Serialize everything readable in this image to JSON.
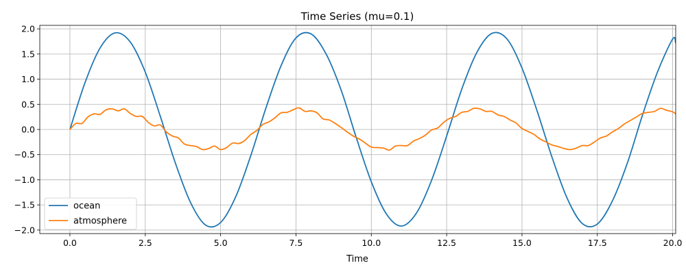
{
  "chart_data": {
    "type": "line",
    "title": "Time Series (mu=0.1)",
    "xlabel": "Time",
    "ylabel": "",
    "xlim": [
      -1.0,
      20.1
    ],
    "ylim": [
      -2.07,
      2.07
    ],
    "xticks": [
      0.0,
      2.5,
      5.0,
      7.5,
      10.0,
      12.5,
      15.0,
      17.5,
      20.0
    ],
    "xtick_labels": [
      "0.0",
      "2.5",
      "5.0",
      "7.5",
      "10.0",
      "12.5",
      "15.0",
      "17.5",
      "20.0"
    ],
    "yticks": [
      -2.0,
      -1.5,
      -1.0,
      -0.5,
      0.0,
      0.5,
      1.0,
      1.5,
      2.0
    ],
    "ytick_labels": [
      "−2.0",
      "−1.5",
      "−1.0",
      "−0.5",
      "0.0",
      "0.5",
      "1.0",
      "1.5",
      "2.0"
    ],
    "grid": true,
    "legend_position": "lower-left",
    "series": [
      {
        "name": "ocean",
        "color": "#1f77b4",
        "x": [
          0.0,
          0.5,
          1.0,
          1.5,
          2.0,
          2.5,
          3.0,
          3.5,
          4.0,
          4.5,
          5.0,
          5.5,
          6.0,
          6.5,
          7.0,
          7.5,
          8.0,
          8.5,
          9.0,
          9.5,
          10.0,
          10.5,
          11.0,
          11.5,
          12.0,
          12.5,
          13.0,
          13.5,
          14.0,
          14.5,
          15.0,
          15.5,
          16.0,
          16.5,
          17.0,
          17.5,
          18.0,
          18.5,
          19.0,
          19.5,
          20.0,
          20.1
        ],
        "y": [
          0.0,
          0.93,
          1.62,
          1.92,
          1.74,
          1.14,
          0.26,
          -0.67,
          -1.45,
          -1.9,
          -1.85,
          -1.34,
          -0.52,
          0.42,
          1.26,
          1.82,
          1.9,
          1.5,
          0.78,
          -0.16,
          -1.04,
          -1.68,
          -1.92,
          -1.66,
          -1.01,
          -0.13,
          0.8,
          1.53,
          1.91,
          1.8,
          1.22,
          0.37,
          -0.56,
          -1.37,
          -1.87,
          -1.88,
          -1.42,
          -0.66,
          0.29,
          1.15,
          1.8,
          1.72
        ]
      },
      {
        "name": "atmosphere",
        "color": "#ff7f0e",
        "x": [
          0.0,
          0.2,
          0.4,
          0.6,
          0.8,
          1.0,
          1.2,
          1.4,
          1.6,
          1.8,
          2.0,
          2.2,
          2.4,
          2.6,
          2.8,
          3.0,
          3.2,
          3.4,
          3.6,
          3.8,
          4.0,
          4.2,
          4.4,
          4.6,
          4.8,
          5.0,
          5.2,
          5.4,
          5.6,
          5.8,
          6.0,
          6.2,
          6.4,
          6.6,
          6.8,
          7.0,
          7.2,
          7.4,
          7.6,
          7.8,
          8.0,
          8.2,
          8.4,
          8.6,
          8.8,
          9.0,
          9.2,
          9.4,
          9.6,
          9.8,
          10.0,
          10.2,
          10.4,
          10.6,
          10.8,
          11.0,
          11.2,
          11.4,
          11.6,
          11.8,
          12.0,
          12.2,
          12.4,
          12.6,
          12.8,
          13.0,
          13.2,
          13.4,
          13.6,
          13.8,
          14.0,
          14.2,
          14.4,
          14.6,
          14.8,
          15.0,
          15.2,
          15.4,
          15.6,
          15.8,
          16.0,
          16.2,
          16.4,
          16.6,
          16.8,
          17.0,
          17.2,
          17.4,
          17.6,
          17.8,
          18.0,
          18.2,
          18.4,
          18.6,
          18.8,
          19.0,
          19.2,
          19.4,
          19.6,
          19.8,
          20.0,
          20.1
        ],
        "y": [
          0.0,
          0.12,
          0.12,
          0.25,
          0.31,
          0.3,
          0.39,
          0.41,
          0.37,
          0.41,
          0.32,
          0.26,
          0.26,
          0.14,
          0.07,
          0.09,
          -0.05,
          -0.13,
          -0.17,
          -0.29,
          -0.32,
          -0.34,
          -0.4,
          -0.38,
          -0.33,
          -0.4,
          -0.36,
          -0.27,
          -0.28,
          -0.22,
          -0.1,
          -0.02,
          0.1,
          0.15,
          0.23,
          0.33,
          0.34,
          0.39,
          0.43,
          0.36,
          0.37,
          0.33,
          0.21,
          0.19,
          0.12,
          0.04,
          -0.05,
          -0.13,
          -0.19,
          -0.27,
          -0.35,
          -0.36,
          -0.37,
          -0.41,
          -0.33,
          -0.32,
          -0.32,
          -0.23,
          -0.18,
          -0.11,
          -0.01,
          0.03,
          0.14,
          0.22,
          0.26,
          0.34,
          0.36,
          0.42,
          0.41,
          0.36,
          0.36,
          0.29,
          0.26,
          0.19,
          0.13,
          0.02,
          -0.04,
          -0.1,
          -0.19,
          -0.25,
          -0.31,
          -0.34,
          -0.38,
          -0.4,
          -0.37,
          -0.32,
          -0.32,
          -0.25,
          -0.17,
          -0.13,
          -0.05,
          0.02,
          0.11,
          0.18,
          0.25,
          0.32,
          0.34,
          0.36,
          0.42,
          0.38,
          0.35,
          0.31
        ]
      }
    ]
  }
}
